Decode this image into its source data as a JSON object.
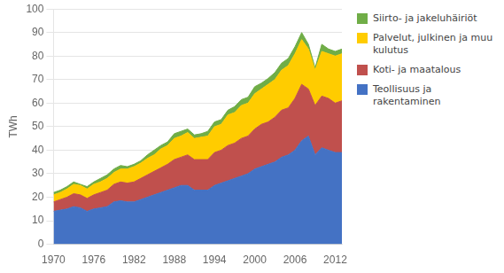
{
  "chart_data": {
    "type": "area",
    "stacked": true,
    "ylabel": "TWh",
    "x": [
      1970,
      1971,
      1972,
      1973,
      1974,
      1975,
      1976,
      1977,
      1978,
      1979,
      1980,
      1981,
      1982,
      1983,
      1984,
      1985,
      1986,
      1987,
      1988,
      1989,
      1990,
      1991,
      1992,
      1993,
      1994,
      1995,
      1996,
      1997,
      1998,
      1999,
      2000,
      2001,
      2002,
      2003,
      2004,
      2005,
      2006,
      2007,
      2008,
      2009,
      2010,
      2011,
      2012,
      2013
    ],
    "series": [
      {
        "name": "Teollisuus ja rakentaminen",
        "color": "#4472C4",
        "values": [
          14,
          14.5,
          15,
          16,
          15.5,
          14,
          15,
          15.5,
          16,
          18,
          18.5,
          18,
          18,
          19,
          20,
          21,
          22,
          23,
          24,
          25,
          25,
          23,
          23,
          23,
          25,
          26,
          27,
          28,
          29,
          30,
          32,
          33,
          34,
          35,
          37,
          38,
          40,
          44,
          46,
          38,
          41,
          40,
          39,
          39
        ]
      },
      {
        "name": "Koti- ja maatalous",
        "color": "#C0504D",
        "values": [
          4,
          4.5,
          5,
          5.5,
          5.5,
          5.5,
          6,
          6.5,
          7,
          7.5,
          8,
          8,
          8.5,
          9,
          9.5,
          10,
          10.5,
          11,
          12,
          12,
          13,
          13,
          13,
          13,
          14,
          14,
          15,
          15,
          16,
          16,
          17,
          18,
          18,
          19,
          20,
          20,
          22,
          24,
          20,
          21,
          22,
          22,
          21,
          22
        ]
      },
      {
        "name": "Palvelut, julkinen ja muu\nkulutus",
        "color": "#FFCC00",
        "values": [
          3,
          3,
          3.5,
          4,
          4,
          4,
          4.5,
          4.5,
          5,
          5,
          5.5,
          6,
          6.5,
          6.5,
          7,
          7,
          8,
          8,
          9,
          9,
          9.5,
          9,
          9.5,
          10,
          11,
          11,
          13,
          13,
          14,
          14,
          15,
          15,
          16,
          16,
          17,
          18,
          19,
          19,
          17,
          15,
          19,
          19,
          20,
          20
        ]
      },
      {
        "name": "Siirto- ja jakeluhäiriöt",
        "color": "#70AD47",
        "values": [
          1,
          1,
          1,
          1,
          0.5,
          1,
          1,
          1.5,
          1.5,
          1.5,
          1.5,
          1,
          1,
          1,
          1.5,
          2,
          1.5,
          1.5,
          2,
          2,
          1.5,
          1.5,
          1.5,
          2,
          2,
          2,
          2,
          2.5,
          2.5,
          2.5,
          3,
          2.5,
          2.5,
          3,
          3,
          3,
          3,
          3,
          2,
          1,
          3,
          2,
          2,
          2
        ]
      }
    ],
    "xlim": [
      1970,
      2013
    ],
    "xticks": [
      1970,
      1976,
      1982,
      1988,
      1994,
      2000,
      2006,
      2012
    ],
    "ylim": [
      0,
      100
    ],
    "yticks": [
      0,
      10,
      20,
      30,
      40,
      50,
      60,
      70,
      80,
      90,
      100
    ],
    "grid": "y",
    "legend": "right"
  }
}
